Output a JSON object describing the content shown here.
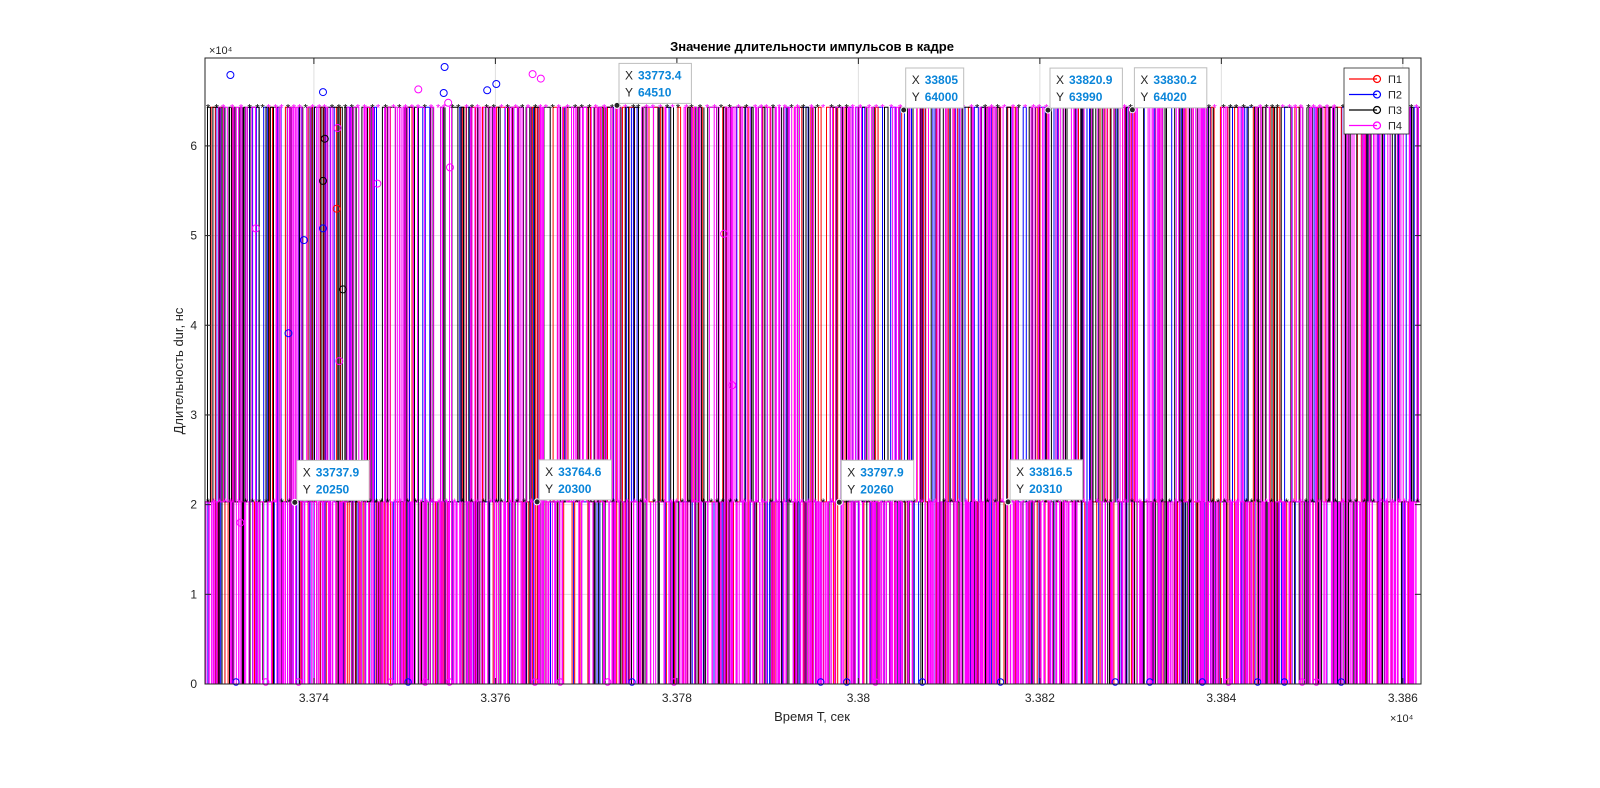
{
  "chart_data": {
    "type": "line",
    "title": "Значение длительности импульсов в кадре",
    "xlabel": "Время T, сек",
    "ylabel": "Длительность dur, нс",
    "x_exponent_label": "×10⁴",
    "y_exponent_label": "×10⁴",
    "xlim": [
      33728,
      33862
    ],
    "ylim": [
      0,
      69800
    ],
    "x_ticks": [
      33740,
      33760,
      33780,
      33800,
      33820,
      33840,
      33860
    ],
    "x_tick_labels": [
      "3.374",
      "3.376",
      "3.378",
      "3.38",
      "3.382",
      "3.384",
      "3.386"
    ],
    "y_ticks": [
      0,
      10000,
      20000,
      30000,
      40000,
      50000,
      60000
    ],
    "y_tick_labels": [
      "0",
      "1",
      "2",
      "3",
      "4",
      "5",
      "6"
    ],
    "grid": true,
    "legend_position": "top-right",
    "series": [
      {
        "name": "П1",
        "color": "#ff0000",
        "marker": "circle"
      },
      {
        "name": "П2",
        "color": "#0000ff",
        "marker": "circle"
      },
      {
        "name": "П3",
        "color": "#000000",
        "marker": "circle"
      },
      {
        "name": "П4",
        "color": "#ff00ff",
        "marker": "circle"
      }
    ],
    "pulse_levels": {
      "high": 64300,
      "mid": 20300,
      "low": 0
    },
    "datatips": [
      {
        "x_label": "X",
        "y_label": "Y",
        "x": "33737.9",
        "y": "20250",
        "xv": 33737.9,
        "yv": 20250
      },
      {
        "x_label": "X",
        "y_label": "Y",
        "x": "33764.6",
        "y": "20300",
        "xv": 33764.6,
        "yv": 20300
      },
      {
        "x_label": "X",
        "y_label": "Y",
        "x": "33773.4",
        "y": "64510",
        "xv": 33773.4,
        "yv": 64510
      },
      {
        "x_label": "X",
        "y_label": "Y",
        "x": "33797.9",
        "y": "20260",
        "xv": 33797.9,
        "yv": 20260
      },
      {
        "x_label": "X",
        "y_label": "Y",
        "x": "33805",
        "y": "64000",
        "xv": 33805,
        "yv": 64000
      },
      {
        "x_label": "X",
        "y_label": "Y",
        "x": "33816.5",
        "y": "20310",
        "xv": 33816.5,
        "yv": 20310
      },
      {
        "x_label": "X",
        "y_label": "Y",
        "x": "33820.9",
        "y": "63990",
        "xv": 33820.9,
        "yv": 63990
      },
      {
        "x_label": "X",
        "y_label": "Y",
        "x": "33830.2",
        "y": "64020",
        "xv": 33830.2,
        "yv": 64020
      }
    ]
  }
}
